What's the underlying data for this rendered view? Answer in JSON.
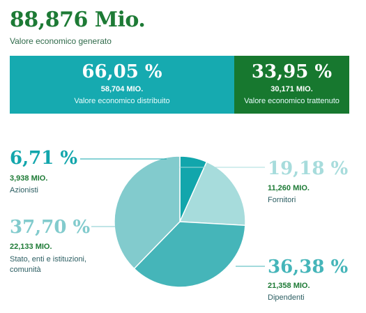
{
  "header": {
    "total_value": "88,876 Mio.",
    "total_label": "Valore economico generato"
  },
  "split": {
    "distributed": {
      "percent": "66,05 %",
      "amount": "58,704 MIO.",
      "label": "Valore economico distribuito",
      "color": "#16aab0"
    },
    "retained": {
      "percent": "33,95 %",
      "amount": "30,171 MIO.",
      "label": "Valore economico trattenuto",
      "color": "#17782f"
    }
  },
  "chart_data": {
    "type": "pie",
    "series": [
      {
        "name": "Azionisti",
        "value": 6.71,
        "percent_label": "6,71 %",
        "amount": "3,938 MIO.",
        "color": "#12a6ac"
      },
      {
        "name": "Fornitori",
        "value": 19.18,
        "percent_label": "19,18 %",
        "amount": "11,260 MIO.",
        "color": "#a7dcdc"
      },
      {
        "name": "Dipendenti",
        "value": 36.38,
        "percent_label": "36,38 %",
        "amount": "21,358 MIO.",
        "color": "#45b5b9"
      },
      {
        "name": "Stato, enti e istituzioni, comunità",
        "value": 37.7,
        "percent_label": "37,70 %",
        "amount": "22,133 MIO.",
        "color": "#82cbcd"
      }
    ],
    "start_angle_deg": 0,
    "direction": "clockwise"
  }
}
